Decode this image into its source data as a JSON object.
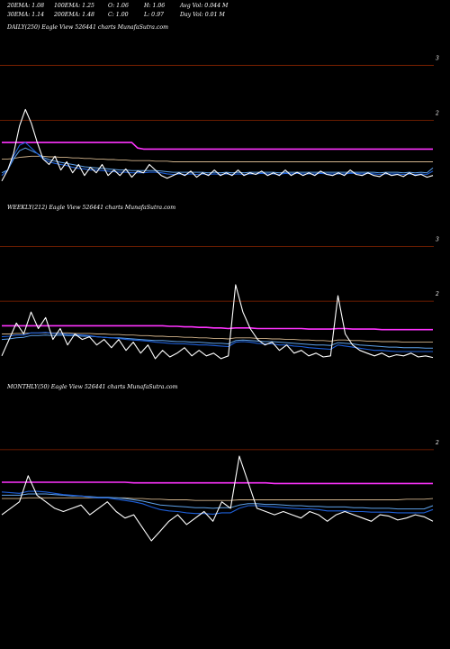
{
  "header": {
    "row1": [
      "20EMA: 1.08",
      "100EMA: 1.25",
      "O: 1.06",
      "H: 1.06",
      "Avg Vol: 0.044  M"
    ],
    "row2": [
      "30EMA: 1.14",
      "200EMA: 1.48",
      "C: 1.00",
      "L: 0.97",
      "Day Vol: 0.01 M"
    ]
  },
  "colors": {
    "background": "#000000",
    "gridline": "#8b2500",
    "price": "#ffffff",
    "ema20": "#1e5fd8",
    "ema30": "#5da0e8",
    "ema100": "#d2b48c",
    "ema200": "#ff33ff",
    "axis_text": "#ffffff"
  },
  "chart_data": [
    {
      "type": "line",
      "title": "DAILY(250) Eagle  View  526441 charts MunafaSutra.com",
      "y_tick_labels": [
        "3",
        "2"
      ],
      "y_ticks": [
        3,
        2
      ],
      "ylim": [
        0.75,
        3.5
      ],
      "grid": true,
      "series": [
        {
          "key": "price",
          "values": [
            0.9,
            1.1,
            1.4,
            1.9,
            2.2,
            1.95,
            1.6,
            1.3,
            1.2,
            1.35,
            1.1,
            1.25,
            1.05,
            1.2,
            1.0,
            1.15,
            1.05,
            1.2,
            1.0,
            1.1,
            1.0,
            1.12,
            0.97,
            1.08,
            1.05,
            1.2,
            1.1,
            1.0,
            0.95,
            1.0,
            1.05,
            1.0,
            1.08,
            0.97,
            1.05,
            1.0,
            1.1,
            1.0,
            1.05,
            1.0,
            1.1,
            1.0,
            1.05,
            1.02,
            1.08,
            1.0,
            1.05,
            1.0,
            1.1,
            1.0,
            1.06,
            1.0,
            1.05,
            1.0,
            1.08,
            1.02,
            1.0,
            1.05,
            1.0,
            1.1,
            1.02,
            1.0,
            1.05,
            1.0,
            0.98,
            1.05,
            1.0,
            1.02,
            0.98,
            1.05,
            1.0,
            1.02,
            0.97,
            1.0
          ]
        },
        {
          "key": "ema20",
          "values": [
            1.0,
            1.1,
            1.35,
            1.55,
            1.6,
            1.5,
            1.4,
            1.3,
            1.25,
            1.22,
            1.2,
            1.18,
            1.15,
            1.13,
            1.12,
            1.1,
            1.1,
            1.09,
            1.08,
            1.07,
            1.06,
            1.06,
            1.05,
            1.05,
            1.05,
            1.06,
            1.06,
            1.05,
            1.03,
            1.02,
            1.03,
            1.02,
            1.03,
            1.02,
            1.03,
            1.02,
            1.03,
            1.02,
            1.03,
            1.02,
            1.03,
            1.02,
            1.03,
            1.03,
            1.04,
            1.03,
            1.03,
            1.02,
            1.04,
            1.03,
            1.04,
            1.03,
            1.03,
            1.03,
            1.04,
            1.03,
            1.03,
            1.03,
            1.03,
            1.04,
            1.04,
            1.03,
            1.04,
            1.03,
            1.02,
            1.03,
            1.03,
            1.03,
            1.02,
            1.03,
            1.02,
            1.03,
            1.02,
            1.08
          ]
        },
        {
          "key": "ema30",
          "values": [
            1.05,
            1.1,
            1.3,
            1.45,
            1.5,
            1.45,
            1.4,
            1.33,
            1.29,
            1.26,
            1.24,
            1.22,
            1.2,
            1.18,
            1.16,
            1.15,
            1.14,
            1.13,
            1.12,
            1.11,
            1.1,
            1.1,
            1.09,
            1.09,
            1.09,
            1.09,
            1.09,
            1.08,
            1.07,
            1.06,
            1.06,
            1.06,
            1.06,
            1.06,
            1.06,
            1.05,
            1.06,
            1.05,
            1.06,
            1.05,
            1.06,
            1.05,
            1.06,
            1.06,
            1.06,
            1.06,
            1.06,
            1.05,
            1.06,
            1.06,
            1.06,
            1.06,
            1.06,
            1.06,
            1.06,
            1.06,
            1.06,
            1.06,
            1.06,
            1.06,
            1.06,
            1.06,
            1.06,
            1.06,
            1.05,
            1.06,
            1.06,
            1.06,
            1.05,
            1.06,
            1.05,
            1.06,
            1.05,
            1.14
          ]
        },
        {
          "key": "ema100",
          "values": [
            1.3,
            1.3,
            1.31,
            1.33,
            1.34,
            1.35,
            1.35,
            1.35,
            1.34,
            1.34,
            1.33,
            1.33,
            1.32,
            1.32,
            1.31,
            1.31,
            1.3,
            1.3,
            1.29,
            1.29,
            1.28,
            1.28,
            1.27,
            1.27,
            1.27,
            1.27,
            1.26,
            1.26,
            1.26,
            1.25,
            1.25,
            1.25,
            1.25,
            1.25,
            1.25,
            1.25,
            1.25,
            1.25,
            1.25,
            1.25,
            1.25,
            1.25,
            1.25,
            1.25,
            1.25,
            1.25,
            1.25,
            1.25,
            1.25,
            1.25,
            1.25,
            1.25,
            1.25,
            1.25,
            1.25,
            1.25,
            1.25,
            1.25,
            1.25,
            1.25,
            1.25,
            1.25,
            1.25,
            1.25,
            1.25,
            1.25,
            1.25,
            1.25,
            1.25,
            1.25,
            1.25,
            1.25,
            1.25,
            1.25
          ]
        },
        {
          "key": "ema200",
          "values": [
            1.6,
            1.6,
            1.6,
            1.6,
            1.6,
            1.6,
            1.6,
            1.6,
            1.6,
            1.6,
            1.6,
            1.6,
            1.6,
            1.6,
            1.6,
            1.6,
            1.6,
            1.6,
            1.6,
            1.6,
            1.6,
            1.6,
            1.6,
            1.5,
            1.48,
            1.48,
            1.48,
            1.48,
            1.48,
            1.48,
            1.48,
            1.48,
            1.48,
            1.48,
            1.48,
            1.48,
            1.48,
            1.48,
            1.48,
            1.48,
            1.48,
            1.48,
            1.48,
            1.48,
            1.48,
            1.48,
            1.48,
            1.48,
            1.48,
            1.48,
            1.48,
            1.48,
            1.48,
            1.48,
            1.48,
            1.48,
            1.48,
            1.48,
            1.48,
            1.48,
            1.48,
            1.48,
            1.48,
            1.48,
            1.48,
            1.48,
            1.48,
            1.48,
            1.48,
            1.48,
            1.48,
            1.48,
            1.48,
            1.48
          ]
        }
      ]
    },
    {
      "type": "line",
      "title": "WEEKLY(212) Eagle  View  526441 charts MunafaSutra.com",
      "y_tick_labels": [
        "3",
        "2"
      ],
      "y_ticks": [
        3,
        2
      ],
      "ylim": [
        0.75,
        3.5
      ],
      "grid": true,
      "series": [
        {
          "key": "price",
          "values": [
            1.0,
            1.3,
            1.6,
            1.4,
            1.8,
            1.5,
            1.7,
            1.3,
            1.5,
            1.2,
            1.4,
            1.3,
            1.35,
            1.2,
            1.3,
            1.15,
            1.3,
            1.1,
            1.25,
            1.05,
            1.2,
            0.95,
            1.1,
            0.98,
            1.05,
            1.15,
            1.0,
            1.1,
            1.0,
            1.05,
            0.95,
            1.0,
            2.3,
            1.8,
            1.5,
            1.3,
            1.2,
            1.25,
            1.1,
            1.2,
            1.05,
            1.1,
            1.0,
            1.05,
            0.98,
            1.0,
            2.1,
            1.4,
            1.2,
            1.1,
            1.05,
            1.0,
            1.05,
            0.98,
            1.02,
            1.0,
            1.05,
            0.98,
            1.0,
            0.97
          ]
        },
        {
          "key": "ema20",
          "values": [
            1.35,
            1.36,
            1.38,
            1.38,
            1.42,
            1.42,
            1.43,
            1.41,
            1.41,
            1.39,
            1.39,
            1.38,
            1.37,
            1.35,
            1.34,
            1.33,
            1.32,
            1.3,
            1.29,
            1.28,
            1.27,
            1.25,
            1.24,
            1.23,
            1.22,
            1.22,
            1.21,
            1.2,
            1.2,
            1.19,
            1.18,
            1.17,
            1.25,
            1.26,
            1.25,
            1.23,
            1.22,
            1.22,
            1.2,
            1.2,
            1.18,
            1.17,
            1.15,
            1.14,
            1.13,
            1.12,
            1.2,
            1.18,
            1.16,
            1.14,
            1.12,
            1.1,
            1.1,
            1.09,
            1.08,
            1.08,
            1.08,
            1.08,
            1.08,
            1.08
          ]
        },
        {
          "key": "ema30",
          "values": [
            1.3,
            1.31,
            1.33,
            1.34,
            1.37,
            1.37,
            1.38,
            1.37,
            1.38,
            1.37,
            1.37,
            1.36,
            1.36,
            1.35,
            1.34,
            1.33,
            1.33,
            1.32,
            1.31,
            1.3,
            1.29,
            1.28,
            1.28,
            1.27,
            1.26,
            1.26,
            1.25,
            1.25,
            1.24,
            1.23,
            1.23,
            1.22,
            1.28,
            1.29,
            1.28,
            1.27,
            1.26,
            1.26,
            1.25,
            1.24,
            1.23,
            1.22,
            1.21,
            1.2,
            1.2,
            1.19,
            1.24,
            1.23,
            1.22,
            1.2,
            1.19,
            1.18,
            1.17,
            1.16,
            1.16,
            1.15,
            1.15,
            1.15,
            1.14,
            1.14
          ]
        },
        {
          "key": "ema100",
          "values": [
            1.4,
            1.4,
            1.41,
            1.41,
            1.42,
            1.42,
            1.42,
            1.42,
            1.42,
            1.42,
            1.41,
            1.41,
            1.41,
            1.4,
            1.4,
            1.39,
            1.39,
            1.38,
            1.38,
            1.37,
            1.37,
            1.36,
            1.36,
            1.35,
            1.35,
            1.34,
            1.34,
            1.33,
            1.33,
            1.32,
            1.32,
            1.31,
            1.33,
            1.33,
            1.33,
            1.32,
            1.32,
            1.31,
            1.31,
            1.3,
            1.3,
            1.29,
            1.29,
            1.28,
            1.28,
            1.27,
            1.29,
            1.29,
            1.28,
            1.28,
            1.27,
            1.27,
            1.26,
            1.26,
            1.26,
            1.25,
            1.25,
            1.25,
            1.25,
            1.25
          ]
        },
        {
          "key": "ema200",
          "values": [
            1.55,
            1.55,
            1.55,
            1.55,
            1.55,
            1.55,
            1.55,
            1.55,
            1.55,
            1.55,
            1.55,
            1.55,
            1.55,
            1.55,
            1.55,
            1.55,
            1.55,
            1.55,
            1.55,
            1.55,
            1.55,
            1.55,
            1.55,
            1.54,
            1.54,
            1.53,
            1.53,
            1.52,
            1.52,
            1.51,
            1.51,
            1.5,
            1.51,
            1.51,
            1.51,
            1.5,
            1.5,
            1.5,
            1.5,
            1.5,
            1.5,
            1.5,
            1.49,
            1.49,
            1.49,
            1.49,
            1.5,
            1.5,
            1.49,
            1.49,
            1.49,
            1.49,
            1.48,
            1.48,
            1.48,
            1.48,
            1.48,
            1.48,
            1.48,
            1.48
          ]
        }
      ]
    },
    {
      "type": "line",
      "title": "MONTHLY(50) Eagle  View  526441 charts MunafaSutra.com",
      "y_tick_labels": [
        "2"
      ],
      "y_ticks": [
        2
      ],
      "ylim": [
        0.6,
        2.4
      ],
      "grid": true,
      "series": [
        {
          "key": "price",
          "values": [
            1.0,
            1.1,
            1.2,
            1.6,
            1.3,
            1.2,
            1.1,
            1.05,
            1.1,
            1.15,
            1.0,
            1.1,
            1.2,
            1.05,
            0.95,
            1.0,
            0.8,
            0.6,
            0.75,
            0.9,
            1.0,
            0.85,
            0.95,
            1.05,
            0.9,
            1.2,
            1.1,
            1.9,
            1.5,
            1.1,
            1.05,
            1.0,
            1.05,
            1.0,
            0.95,
            1.05,
            1.0,
            0.9,
            1.0,
            1.05,
            1.0,
            0.95,
            0.9,
            1.0,
            0.98,
            0.92,
            0.95,
            1.0,
            0.97,
            0.9
          ]
        },
        {
          "key": "ema20",
          "values": [
            1.35,
            1.34,
            1.33,
            1.36,
            1.36,
            1.35,
            1.33,
            1.31,
            1.3,
            1.29,
            1.27,
            1.26,
            1.26,
            1.24,
            1.22,
            1.2,
            1.17,
            1.12,
            1.08,
            1.06,
            1.05,
            1.03,
            1.02,
            1.02,
            1.01,
            1.03,
            1.03,
            1.1,
            1.14,
            1.14,
            1.13,
            1.12,
            1.11,
            1.1,
            1.09,
            1.09,
            1.08,
            1.06,
            1.06,
            1.06,
            1.05,
            1.05,
            1.04,
            1.04,
            1.04,
            1.03,
            1.03,
            1.03,
            1.03,
            1.08
          ]
        },
        {
          "key": "ema30",
          "values": [
            1.3,
            1.3,
            1.3,
            1.32,
            1.32,
            1.32,
            1.31,
            1.3,
            1.29,
            1.29,
            1.28,
            1.27,
            1.27,
            1.26,
            1.25,
            1.23,
            1.21,
            1.18,
            1.15,
            1.14,
            1.13,
            1.12,
            1.11,
            1.11,
            1.1,
            1.11,
            1.11,
            1.15,
            1.17,
            1.17,
            1.16,
            1.16,
            1.15,
            1.14,
            1.14,
            1.13,
            1.13,
            1.12,
            1.12,
            1.12,
            1.11,
            1.11,
            1.1,
            1.1,
            1.1,
            1.09,
            1.09,
            1.09,
            1.09,
            1.14
          ]
        },
        {
          "key": "ema100",
          "values": [
            1.25,
            1.25,
            1.25,
            1.26,
            1.26,
            1.26,
            1.26,
            1.26,
            1.26,
            1.26,
            1.26,
            1.26,
            1.26,
            1.26,
            1.26,
            1.25,
            1.25,
            1.24,
            1.24,
            1.23,
            1.23,
            1.23,
            1.22,
            1.22,
            1.22,
            1.22,
            1.22,
            1.23,
            1.23,
            1.23,
            1.23,
            1.23,
            1.23,
            1.23,
            1.23,
            1.23,
            1.23,
            1.23,
            1.23,
            1.23,
            1.23,
            1.23,
            1.23,
            1.23,
            1.23,
            1.23,
            1.24,
            1.24,
            1.24,
            1.25
          ]
        },
        {
          "key": "ema200",
          "values": [
            1.5,
            1.5,
            1.5,
            1.5,
            1.5,
            1.5,
            1.5,
            1.5,
            1.5,
            1.5,
            1.5,
            1.5,
            1.5,
            1.5,
            1.5,
            1.49,
            1.49,
            1.49,
            1.49,
            1.49,
            1.49,
            1.49,
            1.49,
            1.49,
            1.49,
            1.49,
            1.49,
            1.49,
            1.49,
            1.49,
            1.49,
            1.48,
            1.48,
            1.48,
            1.48,
            1.48,
            1.48,
            1.48,
            1.48,
            1.48,
            1.48,
            1.48,
            1.48,
            1.48,
            1.48,
            1.48,
            1.48,
            1.48,
            1.48,
            1.48
          ]
        }
      ]
    }
  ]
}
